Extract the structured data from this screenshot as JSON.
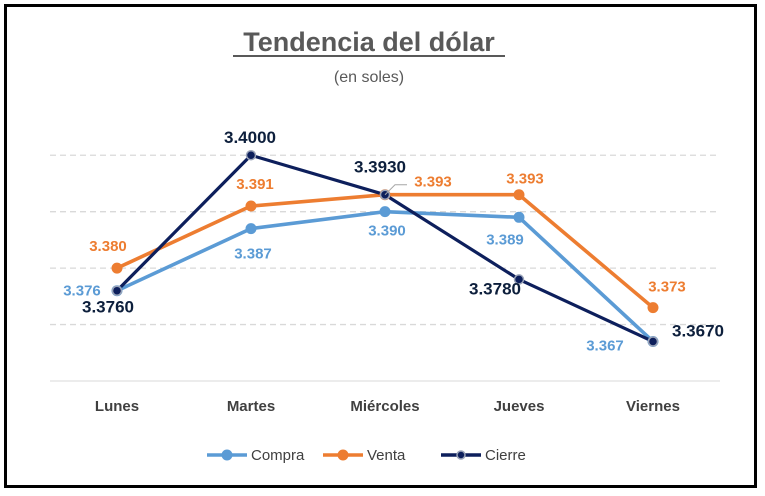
{
  "chart_data": {
    "type": "line",
    "title": "Tendencia del dólar",
    "subtitle": "(en soles)",
    "categories": [
      "Lunes",
      "Martes",
      "Miércoles",
      "Jueves",
      "Viernes"
    ],
    "ylim": [
      3.36,
      3.405
    ],
    "grid": true,
    "legend_position": "bottom",
    "series": [
      {
        "name": "Compra",
        "color": "#5b9bd5",
        "values": [
          3.376,
          3.387,
          3.39,
          3.389,
          3.367
        ],
        "labels": [
          "3.376",
          "3.387",
          "3.390",
          "3.389",
          "3.367"
        ]
      },
      {
        "name": "Venta",
        "color": "#ed7d31",
        "values": [
          3.38,
          3.391,
          3.393,
          3.393,
          3.373
        ],
        "labels": [
          "3.380",
          "3.391",
          "3.393",
          "3.393",
          "3.373"
        ]
      },
      {
        "name": "Cierre",
        "color": "#0d1f5c",
        "values": [
          3.376,
          3.4,
          3.393,
          3.378,
          3.367
        ],
        "labels": [
          "3.3760",
          "3.4000",
          "3.3930",
          "3.3780",
          "3.3670"
        ]
      }
    ]
  }
}
